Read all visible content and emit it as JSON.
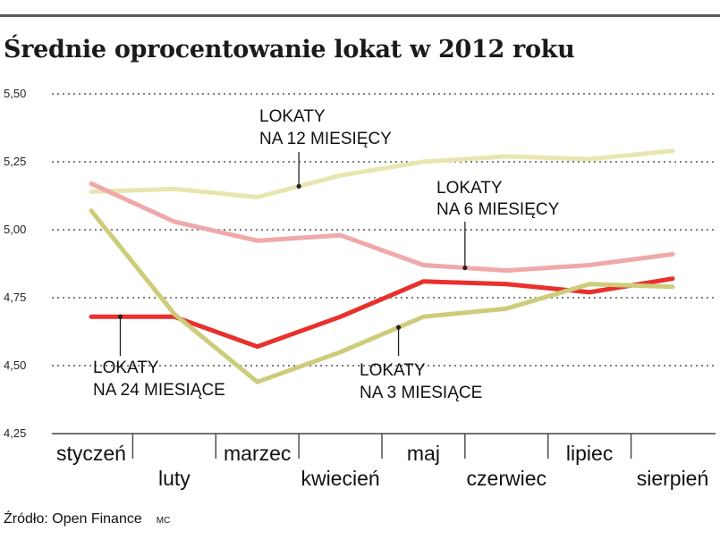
{
  "chart_data": {
    "type": "line",
    "title": "Średnie oprocentowanie lokat w 2012 roku",
    "categories": [
      "styczeń",
      "luty",
      "marzec",
      "kwiecień",
      "maj",
      "czerwiec",
      "lipiec",
      "sierpień"
    ],
    "ylim": [
      4.25,
      5.5
    ],
    "yticks": [
      "5,50",
      "5,25",
      "5,00",
      "4,75",
      "4,50",
      "4,25"
    ],
    "grid": true,
    "series": [
      {
        "name": "LOKATY NA 12 MIESIĘCY",
        "label_lines": [
          "LOKATY",
          "NA 12 MIESIĘCY"
        ],
        "color": "#e8e6b0",
        "values": [
          5.14,
          5.15,
          5.12,
          5.2,
          5.25,
          5.27,
          5.26,
          5.29
        ]
      },
      {
        "name": "LOKATY NA 6 MIESIĘCY",
        "label_lines": [
          "LOKATY",
          "NA 6 MIESIĘCY"
        ],
        "color": "#f0a8a8",
        "values": [
          5.17,
          5.03,
          4.96,
          4.98,
          4.87,
          4.85,
          4.87,
          4.91
        ]
      },
      {
        "name": "LOKATY NA 24 MIESIĄCE",
        "label_lines": [
          "LOKATY",
          "NA 24 MIESIĄCE"
        ],
        "color": "#e8302c",
        "values": [
          4.68,
          4.68,
          4.57,
          4.68,
          4.81,
          4.8,
          4.77,
          4.82
        ]
      },
      {
        "name": "LOKATY NA 3 MIESIĄCE",
        "label_lines": [
          "LOKATY",
          "NA 3 MIESIĄCE"
        ],
        "color": "#cccc7a",
        "values": [
          5.07,
          4.69,
          4.44,
          4.55,
          4.68,
          4.71,
          4.8,
          4.79
        ]
      }
    ]
  },
  "footer": {
    "source": "Źródło: Open Finance",
    "author": "MC"
  }
}
